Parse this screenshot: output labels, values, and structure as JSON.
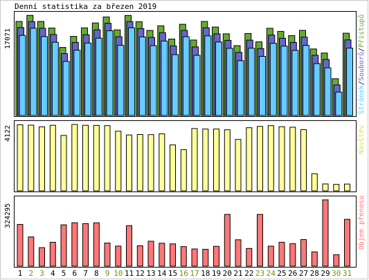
{
  "title": "Denní statistika za březen 2019",
  "colors": {
    "pages": "#66ccff",
    "files": "#6666cc",
    "hits": "#66aa33",
    "visits": "#ffff99",
    "volume": "#ff7777",
    "weekday_label": "#000000",
    "weekend_label": "#669900",
    "visits_text": "#dddd66",
    "volume_text": "#ff7777"
  },
  "legend": {
    "pages": "Stránek",
    "files": "Souborů",
    "hits": "Přístupů",
    "separator": "/",
    "visits": "Návštěv",
    "volume": "Objem přenosu"
  },
  "chart_data": [
    {
      "type": "bar",
      "name": "hits-files-pages",
      "categories": [
        "1",
        "2",
        "3",
        "4",
        "5",
        "6",
        "7",
        "8",
        "9",
        "10",
        "11",
        "12",
        "13",
        "14",
        "15",
        "16",
        "17",
        "18",
        "19",
        "20",
        "21",
        "22",
        "23",
        "24",
        "25",
        "26",
        "27",
        "28",
        "29",
        "30",
        "31"
      ],
      "ylabel": "17071",
      "ymax": 17071,
      "series": [
        {
          "name": "Přístupů",
          "values": [
            15900,
            16930,
            15900,
            14790,
            11510,
            13380,
            14810,
            15650,
            16650,
            14480,
            16920,
            15850,
            14380,
            15160,
            12920,
            15420,
            12760,
            15900,
            14950,
            13810,
            11810,
            13870,
            12450,
            14750,
            14220,
            13510,
            14390,
            11250,
            10560,
            6220,
            13910
          ]
        },
        {
          "name": "Souborů",
          "values": [
            15330,
            16340,
            15210,
            14160,
            10920,
            12800,
            14120,
            14960,
            16060,
            13770,
            16340,
            15150,
            13670,
            14460,
            12220,
            14840,
            12060,
            15290,
            14270,
            13160,
            11130,
            13200,
            11790,
            14070,
            13520,
            12810,
            13710,
            10640,
            9940,
            5620,
            13250
          ]
        },
        {
          "name": "Stránek",
          "values": [
            14480,
            15690,
            14280,
            13320,
            10080,
            11970,
            13180,
            14010,
            15260,
            12800,
            15760,
            14220,
            12740,
            13530,
            11230,
            14250,
            11110,
            14390,
            13350,
            12290,
            10200,
            12310,
            10930,
            13130,
            12660,
            11940,
            12780,
            9700,
            8990,
            4890,
            12320
          ]
        }
      ]
    },
    {
      "type": "bar",
      "name": "visits",
      "categories": [
        "1",
        "2",
        "3",
        "4",
        "5",
        "6",
        "7",
        "8",
        "9",
        "10",
        "11",
        "12",
        "13",
        "14",
        "15",
        "16",
        "17",
        "18",
        "19",
        "20",
        "21",
        "22",
        "23",
        "24",
        "25",
        "26",
        "27",
        "28",
        "29",
        "30",
        "31"
      ],
      "ylabel": "4122",
      "ymax": 4122,
      "series": [
        {
          "name": "Návštěv",
          "values": [
            4100,
            4080,
            3970,
            4070,
            3440,
            4120,
            4070,
            4060,
            4050,
            3700,
            3470,
            3500,
            3490,
            3540,
            2850,
            2560,
            3870,
            3840,
            3840,
            3790,
            3190,
            3920,
            4000,
            4050,
            3980,
            3950,
            3800,
            1060,
            430,
            400,
            420
          ]
        }
      ]
    },
    {
      "type": "bar",
      "name": "volume",
      "categories": [
        "1",
        "2",
        "3",
        "4",
        "5",
        "6",
        "7",
        "8",
        "9",
        "10",
        "11",
        "12",
        "13",
        "14",
        "15",
        "16",
        "17",
        "18",
        "19",
        "20",
        "21",
        "22",
        "23",
        "24",
        "25",
        "26",
        "27",
        "28",
        "29",
        "30",
        "31"
      ],
      "ylabel": "324295",
      "ymax": 324295,
      "series": [
        {
          "name": "Objem přenosu",
          "values": [
            204000,
            143000,
            90500,
            117000,
            202000,
            212000,
            208000,
            212000,
            113000,
            98200,
            198000,
            99800,
            122000,
            112000,
            109000,
            95500,
            84000,
            82400,
            96800,
            253000,
            129000,
            86700,
            253000,
            97800,
            117000,
            110000,
            130000,
            70000,
            324295,
            56000,
            229000
          ]
        }
      ]
    }
  ],
  "days": {
    "labels": [
      "1",
      "2",
      "3",
      "4",
      "5",
      "6",
      "7",
      "8",
      "9",
      "10",
      "11",
      "12",
      "13",
      "14",
      "15",
      "16",
      "17",
      "18",
      "19",
      "20",
      "21",
      "22",
      "23",
      "24",
      "25",
      "26",
      "27",
      "28",
      "29",
      "30",
      "31"
    ],
    "weekend": [
      false,
      true,
      true,
      false,
      false,
      false,
      false,
      false,
      true,
      true,
      false,
      false,
      false,
      false,
      false,
      true,
      true,
      false,
      false,
      false,
      false,
      false,
      true,
      true,
      false,
      false,
      false,
      false,
      false,
      true,
      true
    ]
  }
}
